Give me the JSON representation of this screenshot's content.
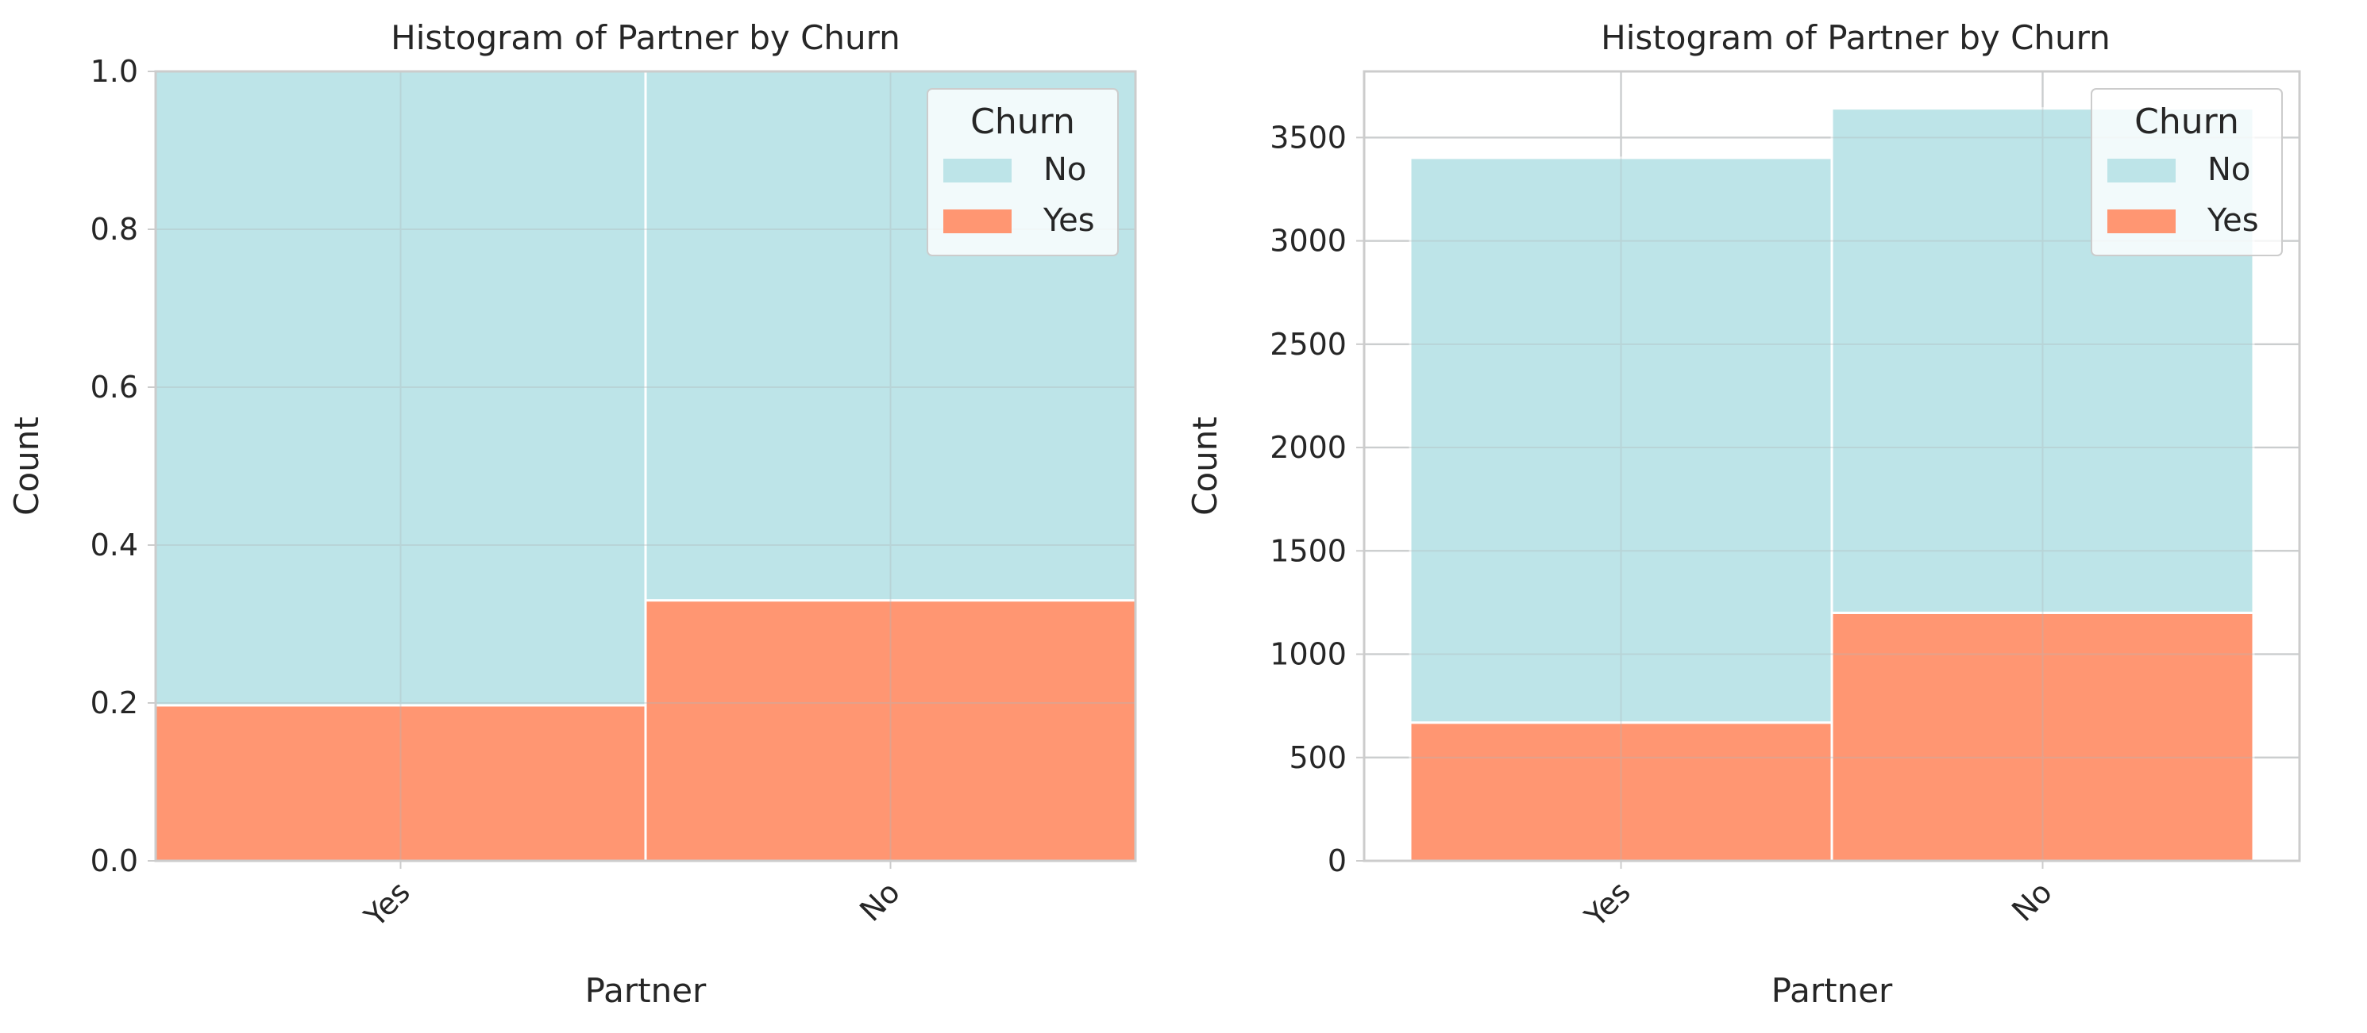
{
  "chart_data": [
    {
      "type": "bar",
      "stacked": true,
      "normalized": true,
      "title": "Histogram of Partner by Churn",
      "xlabel": "Partner",
      "ylabel": "Count",
      "categories": [
        "Yes",
        "No"
      ],
      "series": [
        {
          "name": "No",
          "color": "#bde4e8",
          "values": [
            0.803,
            0.67
          ]
        },
        {
          "name": "Yes",
          "color": "#ff9672",
          "values": [
            0.197,
            0.33
          ]
        }
      ],
      "ylim": [
        0,
        1.0
      ],
      "yticks": [
        "0.0",
        "0.2",
        "0.4",
        "0.6",
        "0.8",
        "1.0"
      ],
      "grid": true,
      "legend": {
        "title": "Churn",
        "placement": "top-right"
      }
    },
    {
      "type": "bar",
      "stacked": true,
      "normalized": false,
      "title": "Histogram of Partner by Churn",
      "xlabel": "Partner",
      "ylabel": "Count",
      "categories": [
        "Yes",
        "No"
      ],
      "series": [
        {
          "name": "No",
          "color": "#bde4e8",
          "values": [
            2733,
            2441
          ]
        },
        {
          "name": "Yes",
          "color": "#ff9672",
          "values": [
            669,
            1200
          ]
        }
      ],
      "ylim": [
        0,
        3820
      ],
      "yticks": [
        "0",
        "500",
        "1000",
        "1500",
        "2000",
        "2500",
        "3000",
        "3500"
      ],
      "grid": true,
      "legend": {
        "title": "Churn",
        "placement": "top-right"
      }
    }
  ]
}
